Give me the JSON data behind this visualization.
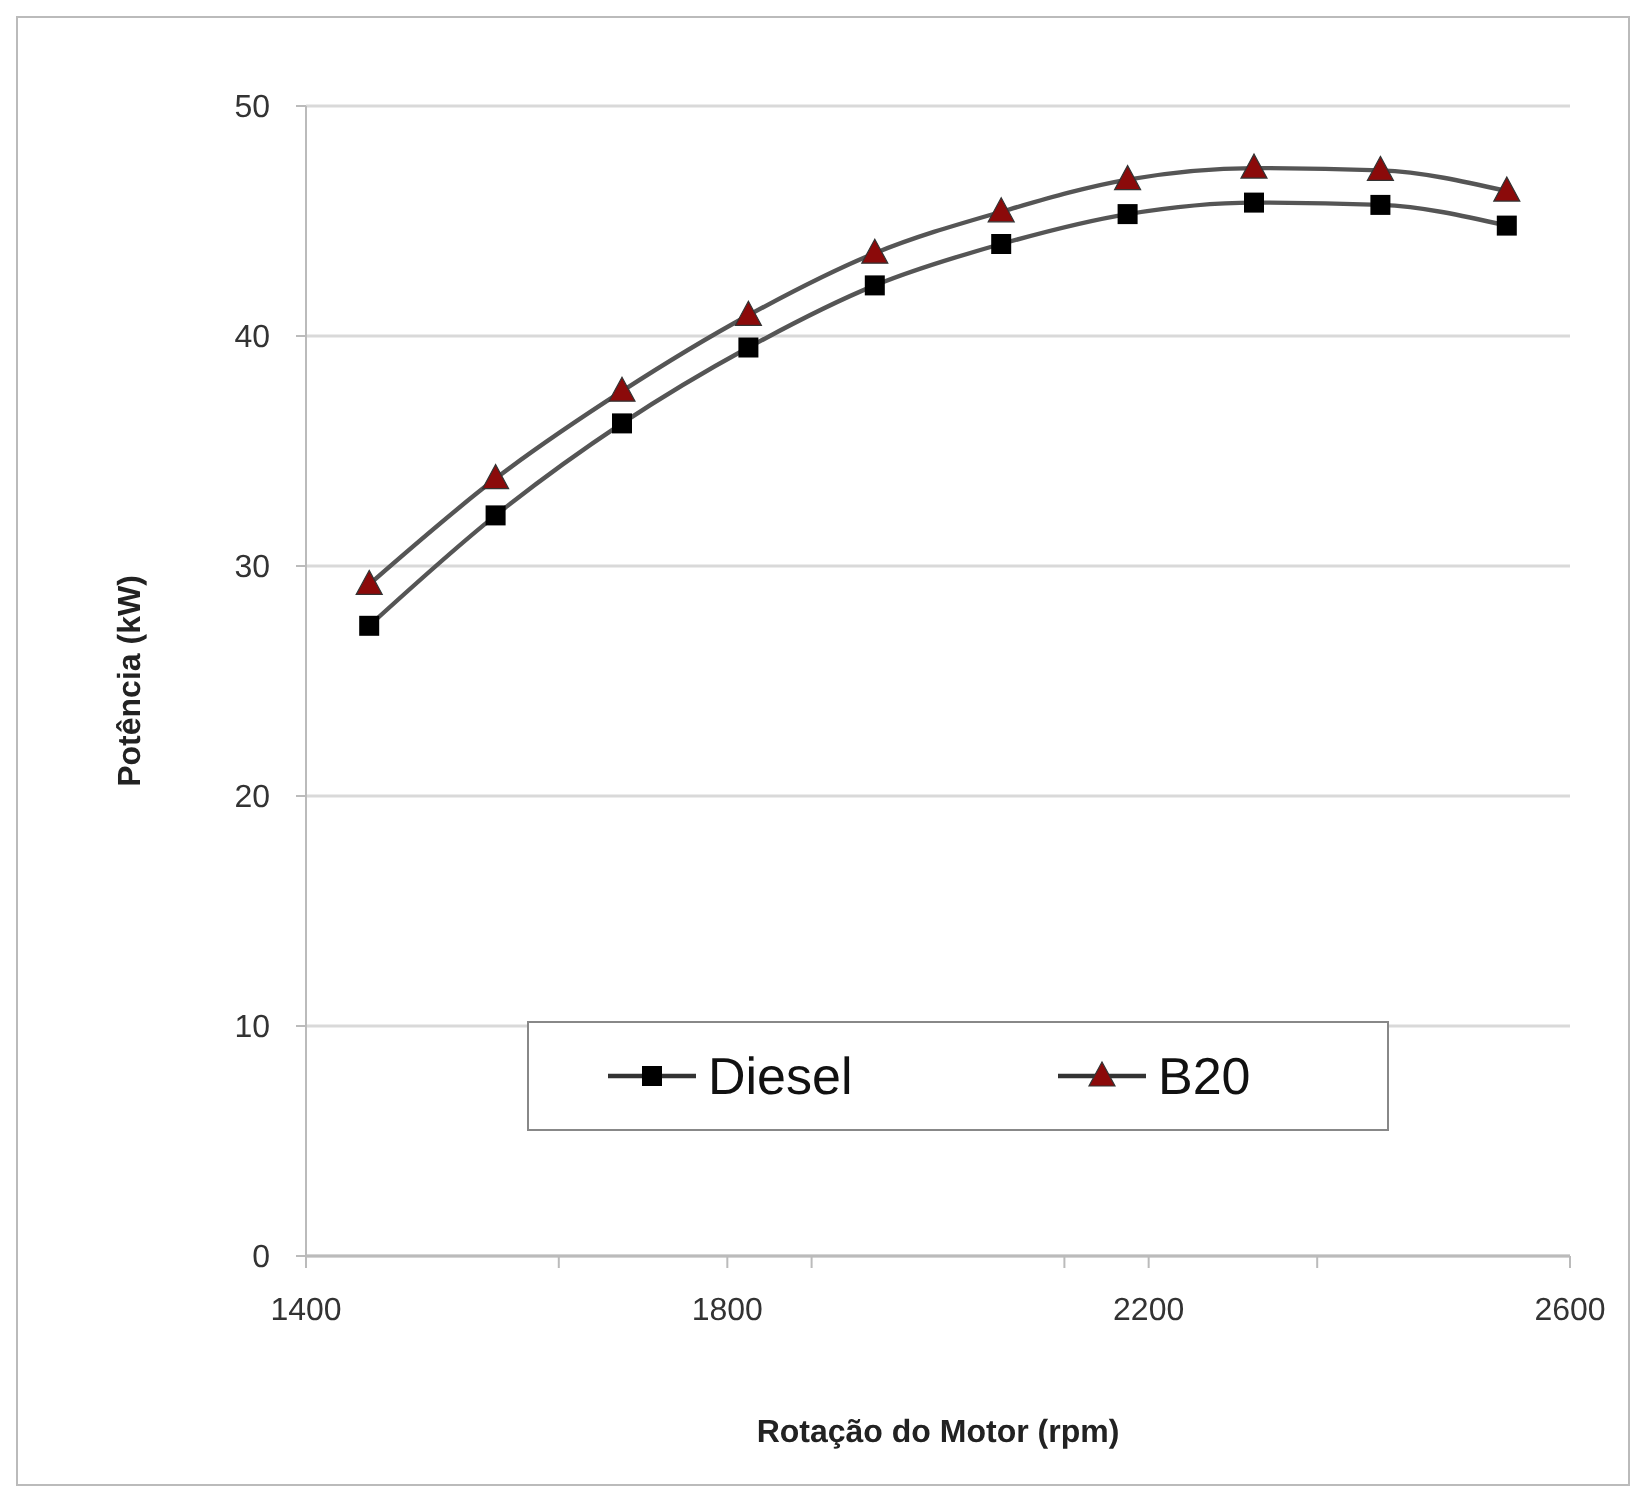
{
  "chart_data": {
    "type": "line",
    "xlabel": "Rotação do Motor (rpm)",
    "ylabel": "Potência (kW)",
    "x": [
      1460,
      1580,
      1700,
      1820,
      1940,
      2060,
      2180,
      2300,
      2420,
      2540
    ],
    "series": [
      {
        "name": "Diesel",
        "color": "#000000",
        "marker": "square",
        "values": [
          27.4,
          32.2,
          36.2,
          39.5,
          42.2,
          44.0,
          45.3,
          45.8,
          45.7,
          44.8
        ]
      },
      {
        "name": "B20",
        "color": "#8b0a0a",
        "marker": "triangle",
        "values": [
          29.2,
          33.8,
          37.6,
          40.9,
          43.6,
          45.4,
          46.8,
          47.3,
          47.2,
          46.3
        ]
      }
    ],
    "xlim": [
      1400,
      2600
    ],
    "xticks": [
      1400,
      {
        "value": 1640,
        "label": null
      },
      1800,
      {
        "value": 1880,
        "label": null
      },
      {
        "value": 2120,
        "label": null
      },
      2200,
      {
        "value": 2360,
        "label": null
      },
      2600
    ],
    "ylim": [
      0,
      50
    ],
    "yticks": [
      0,
      10,
      20,
      30,
      40,
      50
    ],
    "grid": "y",
    "legend": "bottom"
  }
}
